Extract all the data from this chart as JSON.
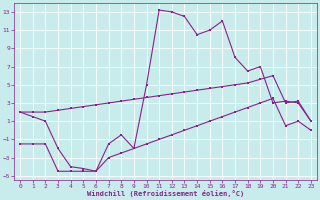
{
  "xlabel": "Windchill (Refroidissement éolien,°C)",
  "xlim": [
    -0.5,
    23.5
  ],
  "ylim": [
    -5.5,
    14.0
  ],
  "yticks": [
    -5,
    -3,
    -1,
    1,
    3,
    5,
    7,
    9,
    11,
    13
  ],
  "xticks": [
    0,
    1,
    2,
    3,
    4,
    5,
    6,
    7,
    8,
    9,
    10,
    11,
    12,
    13,
    14,
    15,
    16,
    17,
    18,
    19,
    20,
    21,
    22,
    23
  ],
  "bg_color": "#c8ecec",
  "grid_color": "#b0d8d8",
  "line_color": "#882288",
  "line1_x": [
    0,
    1,
    2,
    3,
    4,
    5,
    6,
    7,
    8,
    9,
    10,
    11,
    12,
    13,
    14,
    15,
    16,
    17,
    18,
    19,
    20,
    21,
    22,
    23
  ],
  "line1_y": [
    2.0,
    2.0,
    2.0,
    2.2,
    2.4,
    2.6,
    2.8,
    3.0,
    3.2,
    3.4,
    3.6,
    3.8,
    4.0,
    4.2,
    4.4,
    4.6,
    4.8,
    5.0,
    5.2,
    5.6,
    6.0,
    3.0,
    3.2,
    1.0
  ],
  "line2_x": [
    0,
    1,
    2,
    3,
    4,
    5,
    6,
    7,
    8,
    9,
    10,
    11,
    12,
    13,
    14,
    15,
    16,
    17,
    18,
    19,
    20,
    21,
    22,
    23
  ],
  "line2_y": [
    2.0,
    1.5,
    1.0,
    -2.0,
    -4.0,
    -4.2,
    -4.5,
    -1.5,
    -0.5,
    -2.0,
    5.0,
    13.2,
    13.0,
    12.5,
    10.5,
    11.0,
    12.0,
    8.0,
    6.5,
    7.0,
    3.0,
    3.2,
    3.0,
    1.0
  ],
  "line3_x": [
    0,
    1,
    2,
    3,
    4,
    5,
    6,
    7,
    8,
    9,
    10,
    11,
    12,
    13,
    14,
    15,
    16,
    17,
    18,
    19,
    20,
    21,
    22,
    23
  ],
  "line3_y": [
    -1.5,
    -1.5,
    -1.5,
    -4.5,
    -4.5,
    -4.5,
    -4.5,
    -3.0,
    -2.5,
    -2.0,
    -1.5,
    -1.0,
    -0.5,
    0.0,
    0.5,
    1.0,
    1.5,
    2.0,
    2.5,
    3.0,
    3.5,
    0.5,
    1.0,
    0.0
  ]
}
